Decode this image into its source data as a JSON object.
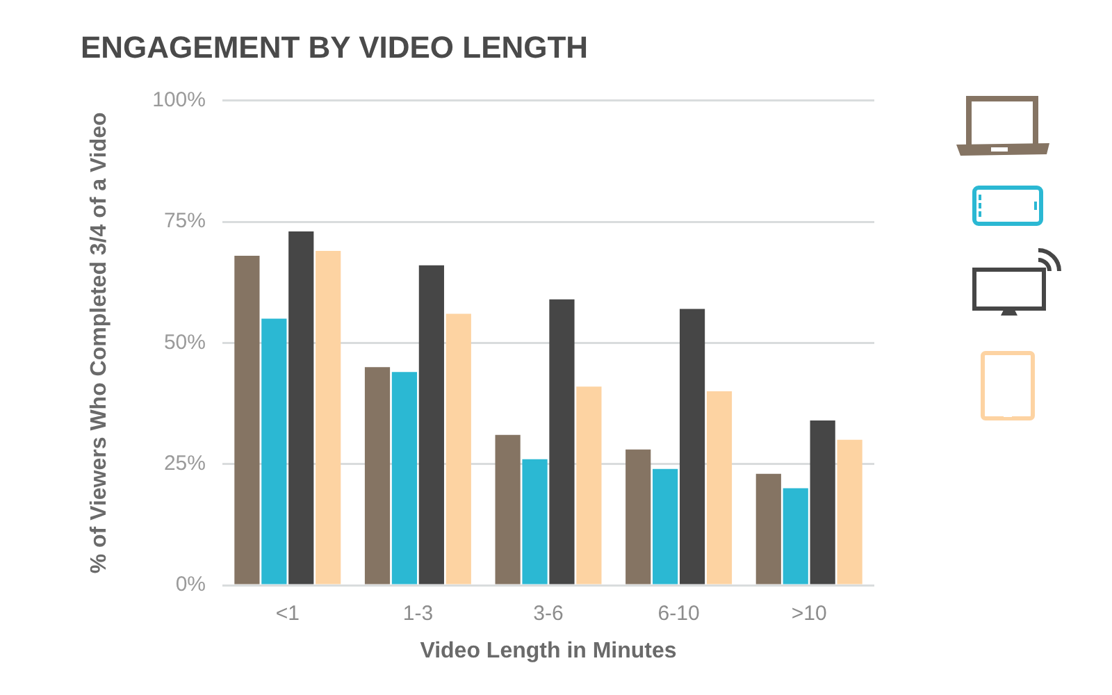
{
  "chart_data": {
    "type": "bar",
    "title": "ENGAGEMENT BY VIDEO LENGTH",
    "xlabel": "Video Length in Minutes",
    "ylabel": "% of Viewers Who Completed 3/4 of a Video",
    "categories": [
      "<1",
      "1-3",
      "3-6",
      "6-10",
      ">10"
    ],
    "series": [
      {
        "color": "#857463",
        "values": [
          68,
          45,
          31,
          28,
          23
        ]
      },
      {
        "color": "#2bb8d3",
        "values": [
          55,
          44,
          26,
          24,
          20
        ]
      },
      {
        "color": "#464646",
        "values": [
          73,
          66,
          59,
          57,
          34
        ]
      },
      {
        "color": "#fdd3a2",
        "values": [
          69,
          56,
          41,
          40,
          30
        ]
      }
    ],
    "ylim": [
      0,
      100
    ],
    "yticks": [
      {
        "value": 0,
        "label": "0%"
      },
      {
        "value": 25,
        "label": "25%"
      },
      {
        "value": 50,
        "label": "50%"
      },
      {
        "value": 75,
        "label": "75%"
      },
      {
        "value": 100,
        "label": "100%"
      }
    ],
    "grid": "y"
  }
}
